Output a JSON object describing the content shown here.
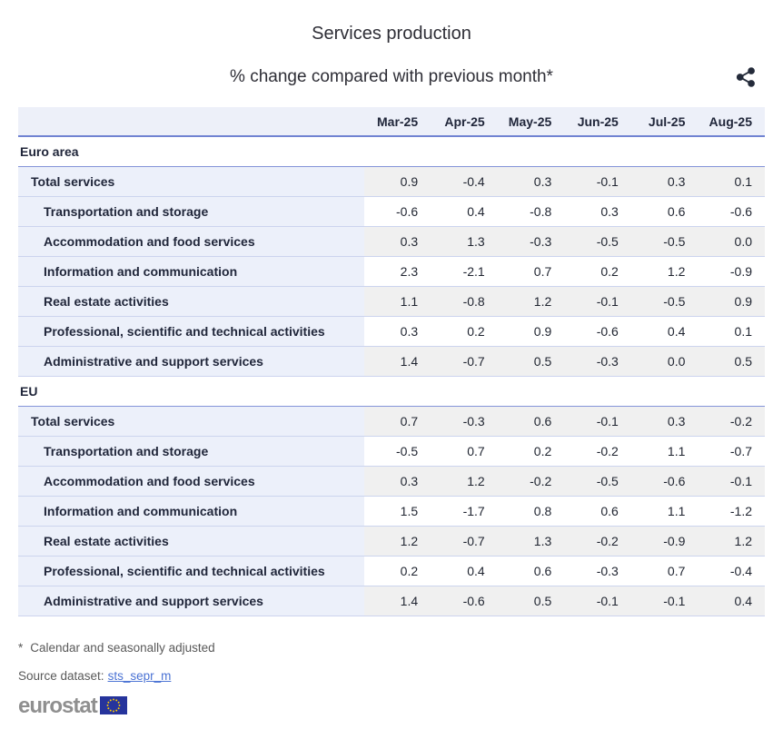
{
  "chart_data": {
    "type": "table",
    "title": "Services production",
    "subtitle": "% change compared with previous month*",
    "columns": [
      "Mar-25",
      "Apr-25",
      "May-25",
      "Jun-25",
      "Jul-25",
      "Aug-25"
    ],
    "sections": [
      {
        "name": "Euro area",
        "rows": [
          {
            "label": "Total services",
            "values": [
              "0.9",
              "-0.4",
              "0.3",
              "-0.1",
              "0.3",
              "0.1"
            ]
          },
          {
            "label": "Transportation and storage",
            "values": [
              "-0.6",
              "0.4",
              "-0.8",
              "0.3",
              "0.6",
              "-0.6"
            ]
          },
          {
            "label": "Accommodation and food services",
            "values": [
              "0.3",
              "1.3",
              "-0.3",
              "-0.5",
              "-0.5",
              "0.0"
            ]
          },
          {
            "label": "Information and communication",
            "values": [
              "2.3",
              "-2.1",
              "0.7",
              "0.2",
              "1.2",
              "-0.9"
            ]
          },
          {
            "label": "Real estate activities",
            "values": [
              "1.1",
              "-0.8",
              "1.2",
              "-0.1",
              "-0.5",
              "0.9"
            ]
          },
          {
            "label": "Professional, scientific and technical activities",
            "values": [
              "0.3",
              "0.2",
              "0.9",
              "-0.6",
              "0.4",
              "0.1"
            ]
          },
          {
            "label": "Administrative and support services",
            "values": [
              "1.4",
              "-0.7",
              "0.5",
              "-0.3",
              "0.0",
              "0.5"
            ]
          }
        ]
      },
      {
        "name": "EU",
        "rows": [
          {
            "label": "Total services",
            "values": [
              "0.7",
              "-0.3",
              "0.6",
              "-0.1",
              "0.3",
              "-0.2"
            ]
          },
          {
            "label": "Transportation and storage",
            "values": [
              "-0.5",
              "0.7",
              "0.2",
              "-0.2",
              "1.1",
              "-0.7"
            ]
          },
          {
            "label": "Accommodation and food services",
            "values": [
              "0.3",
              "1.2",
              "-0.2",
              "-0.5",
              "-0.6",
              "-0.1"
            ]
          },
          {
            "label": "Information and communication",
            "values": [
              "1.5",
              "-1.7",
              "0.8",
              "0.6",
              "1.1",
              "-1.2"
            ]
          },
          {
            "label": "Real estate activities",
            "values": [
              "1.2",
              "-0.7",
              "1.3",
              "-0.2",
              "-0.9",
              "1.2"
            ]
          },
          {
            "label": "Professional, scientific and technical activities",
            "values": [
              "0.2",
              "0.4",
              "0.6",
              "-0.3",
              "0.7",
              "-0.4"
            ]
          },
          {
            "label": "Administrative and support services",
            "values": [
              "1.4",
              "-0.6",
              "0.5",
              "-0.1",
              "-0.1",
              "0.4"
            ]
          }
        ]
      }
    ],
    "layout": {
      "legend": "none",
      "grid": "row-separators",
      "value_alignment": "right"
    }
  },
  "footer": {
    "footnote_marker": "*",
    "footnote": "Calendar and seasonally adjusted",
    "source_label": "Source dataset:",
    "source_link": "sts_sepr_m",
    "logo_text": "eurostat"
  },
  "icons": {
    "share": "share-icon",
    "eu_flag": "eu-flag-icon"
  },
  "colors": {
    "header_bg": "#edf0f9",
    "label_col_bg": "#ecf0fa",
    "stripe_bg": "#f0f0f0",
    "header_border": "#7083d2",
    "section_border": "#8494d9",
    "row_border": "#ccd4ee",
    "text": "#20263a",
    "muted_text": "#595959",
    "link": "#4a72d4",
    "logo_gray": "#8f8f8f",
    "flag_blue": "#26349c",
    "flag_stars": "#ffcc00",
    "share_icon": "#242b3a"
  }
}
